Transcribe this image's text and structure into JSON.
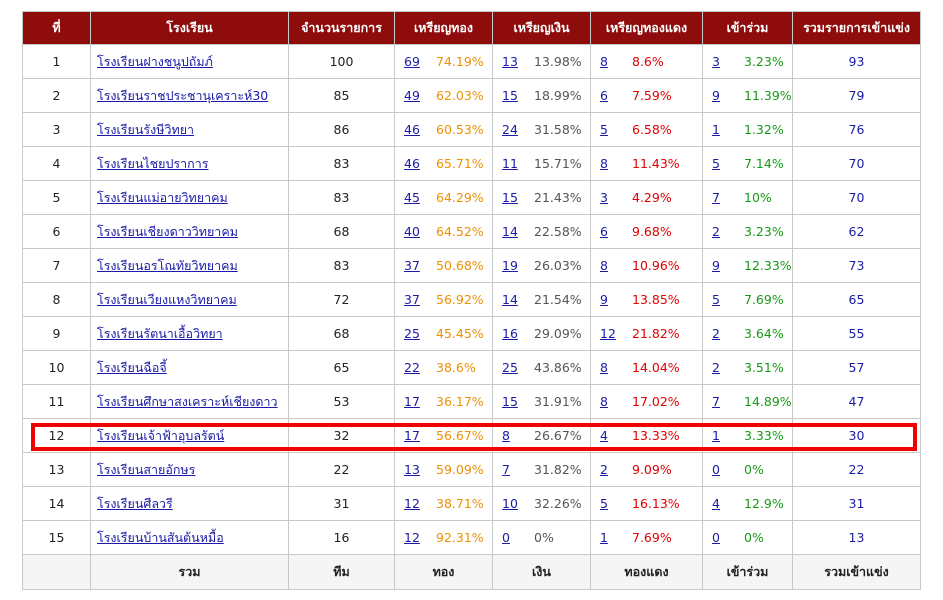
{
  "headers": {
    "no": "ที่",
    "school": "โรงเรียน",
    "events": "จำนวนรายการ",
    "gold": "เหรียญทอง",
    "silver": "เหรียญเงิน",
    "bronze": "เหรียญทองแดง",
    "join": "เข้าร่วม",
    "total": "รวมรายการเข้าแข่ง"
  },
  "rows": [
    {
      "no": "1",
      "school": "โรงเรียนฝางชนูปถัมภ์",
      "events": "100",
      "gold": "69",
      "gold_pct": "74.19%",
      "silver": "13",
      "silver_pct": "13.98%",
      "bronze": "8",
      "bronze_pct": "8.6%",
      "join": "3",
      "join_pct": "3.23%",
      "total": "93"
    },
    {
      "no": "2",
      "school": "โรงเรียนราชประชานุเคราะห์30",
      "events": "85",
      "gold": "49",
      "gold_pct": "62.03%",
      "silver": "15",
      "silver_pct": "18.99%",
      "bronze": "6",
      "bronze_pct": "7.59%",
      "join": "9",
      "join_pct": "11.39%",
      "total": "79"
    },
    {
      "no": "3",
      "school": "โรงเรียนรังษีวิทยา",
      "events": "86",
      "gold": "46",
      "gold_pct": "60.53%",
      "silver": "24",
      "silver_pct": "31.58%",
      "bronze": "5",
      "bronze_pct": "6.58%",
      "join": "1",
      "join_pct": "1.32%",
      "total": "76"
    },
    {
      "no": "4",
      "school": "โรงเรียนไชยปราการ",
      "events": "83",
      "gold": "46",
      "gold_pct": "65.71%",
      "silver": "11",
      "silver_pct": "15.71%",
      "bronze": "8",
      "bronze_pct": "11.43%",
      "join": "5",
      "join_pct": "7.14%",
      "total": "70"
    },
    {
      "no": "5",
      "school": "โรงเรียนแม่อายวิทยาคม",
      "events": "83",
      "gold": "45",
      "gold_pct": "64.29%",
      "silver": "15",
      "silver_pct": "21.43%",
      "bronze": "3",
      "bronze_pct": "4.29%",
      "join": "7",
      "join_pct": "10%",
      "total": "70"
    },
    {
      "no": "6",
      "school": "โรงเรียนเชียงดาววิทยาคม",
      "events": "68",
      "gold": "40",
      "gold_pct": "64.52%",
      "silver": "14",
      "silver_pct": "22.58%",
      "bronze": "6",
      "bronze_pct": "9.68%",
      "join": "2",
      "join_pct": "3.23%",
      "total": "62"
    },
    {
      "no": "7",
      "school": "โรงเรียนอรโณทัยวิทยาคม",
      "events": "83",
      "gold": "37",
      "gold_pct": "50.68%",
      "silver": "19",
      "silver_pct": "26.03%",
      "bronze": "8",
      "bronze_pct": "10.96%",
      "join": "9",
      "join_pct": "12.33%",
      "total": "73"
    },
    {
      "no": "8",
      "school": "โรงเรียนเวียงแหงวิทยาคม",
      "events": "72",
      "gold": "37",
      "gold_pct": "56.92%",
      "silver": "14",
      "silver_pct": "21.54%",
      "bronze": "9",
      "bronze_pct": "13.85%",
      "join": "5",
      "join_pct": "7.69%",
      "total": "65"
    },
    {
      "no": "9",
      "school": "โรงเรียนรัตนาเอื้อวิทยา",
      "events": "68",
      "gold": "25",
      "gold_pct": "45.45%",
      "silver": "16",
      "silver_pct": "29.09%",
      "bronze": "12",
      "bronze_pct": "21.82%",
      "join": "2",
      "join_pct": "3.64%",
      "total": "55"
    },
    {
      "no": "10",
      "school": "โรงเรียนฉือจี้",
      "events": "65",
      "gold": "22",
      "gold_pct": "38.6%",
      "silver": "25",
      "silver_pct": "43.86%",
      "bronze": "8",
      "bronze_pct": "14.04%",
      "join": "2",
      "join_pct": "3.51%",
      "total": "57"
    },
    {
      "no": "11",
      "school": "โรงเรียนศึกษาสงเคราะห์เชียงดาว",
      "events": "53",
      "gold": "17",
      "gold_pct": "36.17%",
      "silver": "15",
      "silver_pct": "31.91%",
      "bronze": "8",
      "bronze_pct": "17.02%",
      "join": "7",
      "join_pct": "14.89%",
      "total": "47"
    },
    {
      "no": "12",
      "school": "โรงเรียนเจ้าฟ้าอุบลรัตน์",
      "events": "32",
      "gold": "17",
      "gold_pct": "56.67%",
      "silver": "8",
      "silver_pct": "26.67%",
      "bronze": "4",
      "bronze_pct": "13.33%",
      "join": "1",
      "join_pct": "3.33%",
      "total": "30"
    },
    {
      "no": "13",
      "school": "โรงเรียนสายอักษร",
      "events": "22",
      "gold": "13",
      "gold_pct": "59.09%",
      "silver": "7",
      "silver_pct": "31.82%",
      "bronze": "2",
      "bronze_pct": "9.09%",
      "join": "0",
      "join_pct": "0%",
      "total": "22"
    },
    {
      "no": "14",
      "school": "โรงเรียนศีลวรี",
      "events": "31",
      "gold": "12",
      "gold_pct": "38.71%",
      "silver": "10",
      "silver_pct": "32.26%",
      "bronze": "5",
      "bronze_pct": "16.13%",
      "join": "4",
      "join_pct": "12.9%",
      "total": "31"
    },
    {
      "no": "15",
      "school": "โรงเรียนบ้านสันต้นหมื้อ",
      "events": "16",
      "gold": "12",
      "gold_pct": "92.31%",
      "silver": "0",
      "silver_pct": "0%",
      "bronze": "1",
      "bronze_pct": "7.69%",
      "join": "0",
      "join_pct": "0%",
      "total": "13"
    }
  ],
  "footer": {
    "total": "รวม",
    "team": "ทีม",
    "gold": "ทอง",
    "silver": "เงิน",
    "bronze": "ทองแดง",
    "join": "เข้าร่วม",
    "all": "รวมเข้าแข่ง"
  },
  "colors": {
    "header_bg": "#8e0c0c",
    "gold": "#f09000",
    "silver": "#555555",
    "bronze": "#e00000",
    "join": "#169a16",
    "link": "#1a1aa6",
    "highlight": "#f20000"
  }
}
